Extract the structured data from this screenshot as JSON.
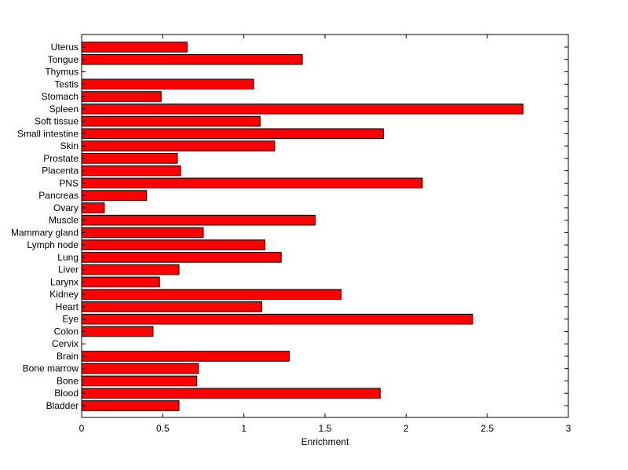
{
  "chart_data": {
    "type": "bar",
    "orientation": "horizontal",
    "title": "",
    "xlabel": "Enrichment",
    "ylabel": "",
    "xlim": [
      0,
      3
    ],
    "xticks": [
      0,
      0.5,
      1,
      1.5,
      2,
      2.5,
      3
    ],
    "xtick_labels": [
      "0",
      "0.5",
      "1",
      "1.5",
      "2",
      "2.5",
      "3"
    ],
    "grid": false,
    "legend": "none",
    "bar_color": "#ff0000",
    "bar_edge_color": "#000000",
    "categories": [
      "Bladder",
      "Blood",
      "Bone",
      "Bone marrow",
      "Brain",
      "Cervix",
      "Colon",
      "Eye",
      "Heart",
      "Kidney",
      "Larynx",
      "Liver",
      "Lung",
      "Lymph node",
      "Mammary gland",
      "Muscle",
      "Ovary",
      "Pancreas",
      "PNS",
      "Placenta",
      "Prostate",
      "Skin",
      "Small intestine",
      "Soft tissue",
      "Spleen",
      "Stomach",
      "Testis",
      "Thymus",
      "Tongue",
      "Uterus"
    ],
    "values": [
      0.6,
      1.84,
      0.71,
      0.72,
      1.28,
      0,
      0.44,
      2.41,
      1.11,
      1.6,
      0.48,
      0.6,
      1.23,
      1.13,
      0.75,
      1.44,
      0.14,
      0.4,
      2.1,
      0.61,
      0.59,
      1.19,
      1.86,
      1.1,
      2.72,
      0.49,
      1.06,
      0,
      1.36,
      0.65
    ]
  }
}
